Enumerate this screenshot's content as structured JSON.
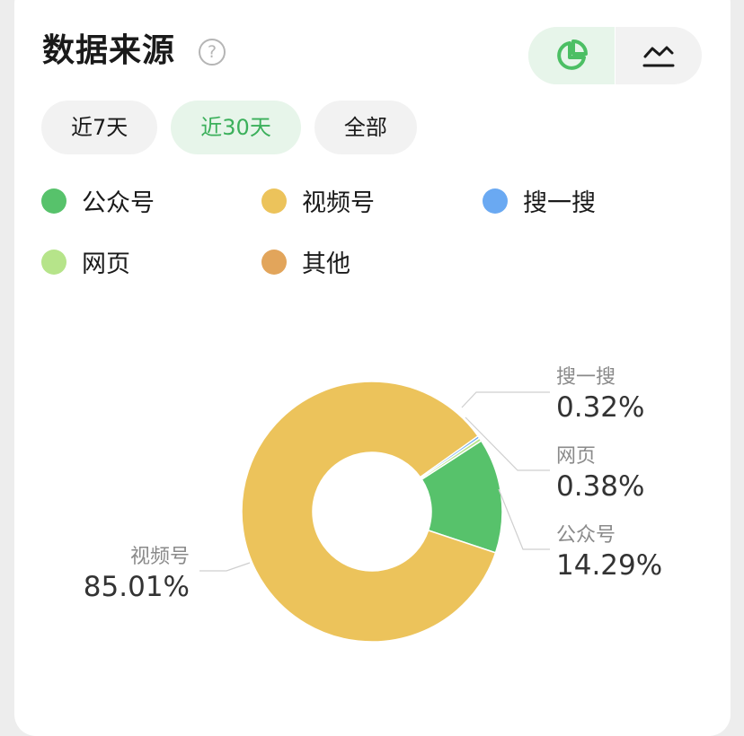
{
  "header": {
    "title": "数据来源",
    "help": "?"
  },
  "view_toggle": [
    {
      "icon": "pie-chart-icon",
      "active": true
    },
    {
      "icon": "line-chart-icon",
      "active": false
    }
  ],
  "tabs": [
    {
      "label": "近7天",
      "active": false
    },
    {
      "label": "近30天",
      "active": true
    },
    {
      "label": "全部",
      "active": false
    }
  ],
  "legend": [
    {
      "label": "公众号",
      "color": "#57c26b"
    },
    {
      "label": "视频号",
      "color": "#ecc35b"
    },
    {
      "label": "搜一搜",
      "color": "#6aa9f2"
    },
    {
      "label": "网页",
      "color": "#b6e48a"
    },
    {
      "label": "其他",
      "color": "#e2a55b"
    }
  ],
  "chart_data": {
    "type": "pie",
    "donut": true,
    "slices": [
      {
        "name": "公众号",
        "value": 14.29,
        "label": "14.29%",
        "color": "#57c26b"
      },
      {
        "name": "视频号",
        "value": 85.01,
        "label": "85.01%",
        "color": "#ecc35b"
      },
      {
        "name": "搜一搜",
        "value": 0.32,
        "label": "0.32%",
        "color": "#6aa9f2"
      },
      {
        "name": "网页",
        "value": 0.38,
        "label": "0.38%",
        "color": "#b6e48a"
      },
      {
        "name": "其他",
        "value": 0,
        "label": "",
        "color": "#e2a55b"
      }
    ]
  }
}
